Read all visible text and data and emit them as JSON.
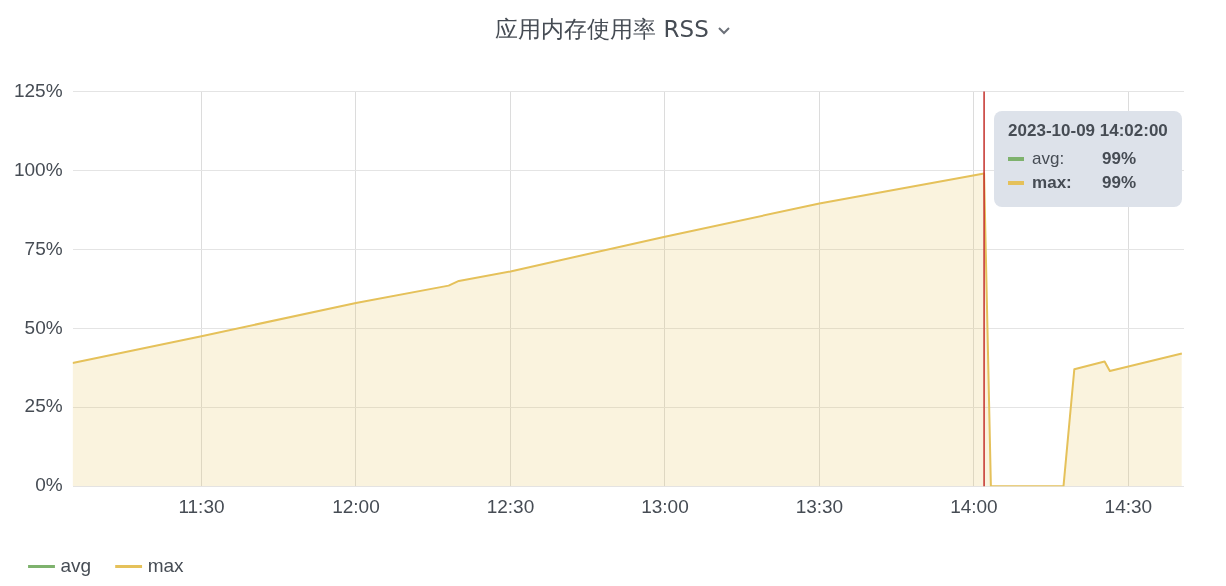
{
  "chart_data": {
    "type": "area",
    "title": "应用内存使用率 RSS",
    "x": [
      11.083,
      11.5,
      12.0,
      12.3,
      12.333,
      12.5,
      13.0,
      13.5,
      14.033,
      14.055,
      14.29,
      14.325,
      14.423,
      14.44,
      14.673
    ],
    "series": [
      {
        "name": "avg",
        "color": "#7eb26d",
        "values": [
          null,
          null,
          null,
          null,
          null,
          null,
          null,
          null,
          null,
          null,
          null,
          null,
          null,
          null,
          null
        ]
      },
      {
        "name": "max",
        "color": "#e5c15a",
        "values": [
          39,
          47.5,
          58,
          63.5,
          65,
          68,
          79,
          89.5,
          99,
          0,
          0,
          37,
          39.5,
          36.5,
          42
        ]
      }
    ],
    "xlim": [
      11.083,
      14.68
    ],
    "xticks": [
      {
        "value": 11.5,
        "label": "11:30"
      },
      {
        "value": 12,
        "label": "12:00"
      },
      {
        "value": 12.5,
        "label": "12:30"
      },
      {
        "value": 13,
        "label": "13:00"
      },
      {
        "value": 13.5,
        "label": "13:30"
      },
      {
        "value": 14,
        "label": "14:00"
      },
      {
        "value": 14.5,
        "label": "14:30"
      }
    ],
    "ylim": [
      0,
      125
    ],
    "yticks": [
      {
        "value": 0,
        "label": "0%"
      },
      {
        "value": 25,
        "label": "25%"
      },
      {
        "value": 50,
        "label": "50%"
      },
      {
        "value": 75,
        "label": "75%"
      },
      {
        "value": 100,
        "label": "100%"
      },
      {
        "value": 125,
        "label": "125%"
      }
    ],
    "ref_lines": [
      {
        "axis": "x",
        "value": 14.033,
        "color": "#c4302b"
      }
    ],
    "annotations": [
      "2023-10-09 14:02:00",
      "avg:",
      "99%",
      "max:",
      "99%"
    ],
    "grid": true,
    "legend": "bottom",
    "marker": "none",
    "line_style": "solid"
  }
}
